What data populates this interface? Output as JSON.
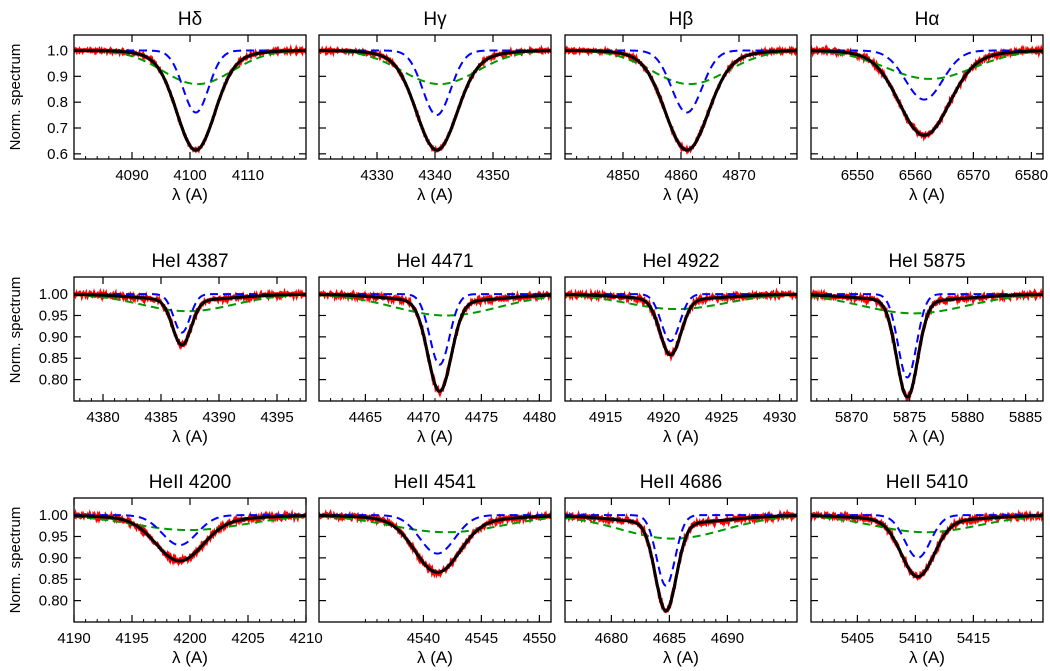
{
  "figure": {
    "ylabel": "Norm. spectrum",
    "xlabel": "λ (A)",
    "legend": "none",
    "grid": false
  },
  "colors": {
    "observed": "#ff0000",
    "model_total": "#000000",
    "component_1": "#0000ff",
    "component_2": "#009900"
  },
  "chart_data": [
    {
      "type": "line",
      "title": "Hδ",
      "xlim": [
        4080,
        4120
      ],
      "ylim": [
        0.58,
        1.06
      ],
      "xticks": [
        4090,
        4100,
        4110
      ],
      "yticks": [
        0.6,
        0.7,
        0.8,
        0.9,
        1.0
      ],
      "ytick_labels": [
        "0.6",
        "0.7",
        "0.8",
        "0.9",
        "1.0"
      ],
      "center": 4101.0,
      "depth_total": 0.34,
      "width_total": 3.2,
      "depth_c1": 0.24,
      "width_c1": 2.2,
      "depth_c2": 0.13,
      "width_c2": 6.0,
      "c2_offset": 0.3,
      "noise": 0.004
    },
    {
      "type": "line",
      "title": "Hγ",
      "xlim": [
        4320,
        4360
      ],
      "ylim": [
        0.58,
        1.06
      ],
      "xticks": [
        4330,
        4340,
        4350
      ],
      "yticks": [
        0.6,
        0.7,
        0.8,
        0.9,
        1.0
      ],
      "ytick_labels": [
        "0.6",
        "0.7",
        "0.8",
        "0.9",
        "1.0"
      ],
      "center": 4340.3,
      "depth_total": 0.34,
      "width_total": 3.4,
      "depth_c1": 0.25,
      "width_c1": 2.4,
      "depth_c2": 0.13,
      "width_c2": 6.5,
      "c2_offset": 0.5,
      "noise": 0.004
    },
    {
      "type": "line",
      "title": "Hβ",
      "xlim": [
        4840,
        4880
      ],
      "ylim": [
        0.58,
        1.06
      ],
      "xticks": [
        4850,
        4860,
        4870
      ],
      "yticks": [
        0.6,
        0.7,
        0.8,
        0.9,
        1.0
      ],
      "ytick_labels": [
        "0.6",
        "0.7",
        "0.8",
        "0.9",
        "1.0"
      ],
      "center": 4861.0,
      "depth_total": 0.34,
      "width_total": 3.6,
      "depth_c1": 0.24,
      "width_c1": 2.6,
      "depth_c2": 0.13,
      "width_c2": 6.5,
      "c2_offset": 0.5,
      "noise": 0.004
    },
    {
      "type": "line",
      "title": "Hα",
      "xlim": [
        6542,
        6582
      ],
      "ylim": [
        0.58,
        1.06
      ],
      "xticks": [
        6550,
        6560,
        6570,
        6580
      ],
      "yticks": [
        0.6,
        0.7,
        0.8,
        0.9,
        1.0
      ],
      "ytick_labels": [
        "0.6",
        "0.7",
        "0.8",
        "0.9",
        "1.0"
      ],
      "center": 6561.5,
      "depth_total": 0.29,
      "width_total": 4.2,
      "depth_c1": 0.19,
      "width_c1": 3.2,
      "depth_c2": 0.11,
      "width_c2": 7.5,
      "c2_offset": 1.0,
      "noise": 0.006
    },
    {
      "type": "line",
      "title": "HeI 4387",
      "xlim": [
        4377.5,
        4397.5
      ],
      "ylim": [
        0.75,
        1.04
      ],
      "xticks": [
        4380,
        4385,
        4390,
        4395
      ],
      "yticks": [
        0.8,
        0.85,
        0.9,
        0.95,
        1.0
      ],
      "ytick_labels": [
        "0.80",
        "0.85",
        "0.90",
        "0.95",
        "1.00"
      ],
      "center": 4386.8,
      "depth_total": 0.105,
      "width_total": 0.8,
      "depth_c1": 0.09,
      "width_c1": 0.7,
      "depth_c2": 0.04,
      "width_c2": 4.0,
      "c2_offset": 0.5,
      "noise": 0.004
    },
    {
      "type": "line",
      "title": "HeI 4471",
      "xlim": [
        4461,
        4481
      ],
      "ylim": [
        0.75,
        1.04
      ],
      "xticks": [
        4465,
        4470,
        4475,
        4480
      ],
      "yticks": [
        0.8,
        0.85,
        0.9,
        0.95,
        1.0
      ],
      "ytick_labels": [
        "0.80",
        "0.85",
        "0.90",
        "0.95",
        "1.00"
      ],
      "center": 4471.4,
      "depth_total": 0.21,
      "width_total": 1.0,
      "depth_c1": 0.165,
      "width_c1": 0.85,
      "depth_c2": 0.05,
      "width_c2": 4.5,
      "c2_offset": 0.6,
      "noise": 0.004
    },
    {
      "type": "line",
      "title": "HeI 4922",
      "xlim": [
        4911.5,
        4931.5
      ],
      "ylim": [
        0.75,
        1.04
      ],
      "xticks": [
        4915,
        4920,
        4925,
        4930
      ],
      "yticks": [
        0.8,
        0.85,
        0.9,
        0.95,
        1.0
      ],
      "ytick_labels": [
        "0.80",
        "0.85",
        "0.90",
        "0.95",
        "1.00"
      ],
      "center": 4920.6,
      "depth_total": 0.13,
      "width_total": 0.9,
      "depth_c1": 0.11,
      "width_c1": 0.8,
      "depth_c2": 0.035,
      "width_c2": 4.2,
      "c2_offset": 0.5,
      "noise": 0.004
    },
    {
      "type": "line",
      "title": "HeI 5875",
      "xlim": [
        5866.5,
        5886.5
      ],
      "ylim": [
        0.75,
        1.04
      ],
      "xticks": [
        5870,
        5875,
        5880,
        5885
      ],
      "yticks": [
        0.8,
        0.85,
        0.9,
        0.95,
        1.0
      ],
      "ytick_labels": [
        "0.80",
        "0.85",
        "0.90",
        "0.95",
        "1.00"
      ],
      "center": 5874.8,
      "depth_total": 0.225,
      "width_total": 0.9,
      "depth_c1": 0.195,
      "width_c1": 0.8,
      "depth_c2": 0.045,
      "width_c2": 4.5,
      "c2_offset": 0.6,
      "noise": 0.005
    },
    {
      "type": "line",
      "title": "HeII 4200",
      "xlim": [
        4190,
        4210
      ],
      "ylim": [
        0.75,
        1.04
      ],
      "xticks": [
        4190,
        4195,
        4200,
        4205,
        4210
      ],
      "yticks": [
        0.8,
        0.85,
        0.9,
        0.95,
        1.0
      ],
      "ytick_labels": [
        "0.80",
        "0.85",
        "0.90",
        "0.95",
        "1.00"
      ],
      "center": 4199.1,
      "depth_total": 0.095,
      "width_total": 2.0,
      "depth_c1": 0.07,
      "width_c1": 1.5,
      "depth_c2": 0.035,
      "width_c2": 4.8,
      "c2_offset": 0.8,
      "noise": 0.004
    },
    {
      "type": "line",
      "title": "HeII 4541",
      "xlim": [
        4531,
        4551
      ],
      "ylim": [
        0.75,
        1.04
      ],
      "xticks": [
        4540,
        4545,
        4550
      ],
      "yticks": [
        0.8,
        0.85,
        0.9,
        0.95,
        1.0
      ],
      "ytick_labels": [
        "0.80",
        "0.85",
        "0.90",
        "0.95",
        "1.00"
      ],
      "center": 4541.2,
      "depth_total": 0.12,
      "width_total": 1.9,
      "depth_c1": 0.09,
      "width_c1": 1.5,
      "depth_c2": 0.04,
      "width_c2": 4.8,
      "c2_offset": 0.8,
      "noise": 0.004
    },
    {
      "type": "line",
      "title": "HeII 4686",
      "xlim": [
        4676,
        4696
      ],
      "ylim": [
        0.75,
        1.04
      ],
      "xticks": [
        4680,
        4685,
        4690
      ],
      "yticks": [
        0.8,
        0.85,
        0.9,
        0.95,
        1.0
      ],
      "ytick_labels": [
        "0.80",
        "0.85",
        "0.90",
        "0.95",
        "1.00"
      ],
      "center": 4684.7,
      "depth_total": 0.205,
      "width_total": 0.9,
      "depth_c1": 0.165,
      "width_c1": 0.8,
      "depth_c2": 0.055,
      "width_c2": 4.5,
      "c2_offset": 0.6,
      "noise": 0.005
    },
    {
      "type": "line",
      "title": "HeII 5410",
      "xlim": [
        5401,
        5421
      ],
      "ylim": [
        0.75,
        1.04
      ],
      "xticks": [
        5405,
        5410,
        5415
      ],
      "yticks": [
        0.8,
        0.85,
        0.9,
        0.95,
        1.0
      ],
      "ytick_labels": [
        "0.80",
        "0.85",
        "0.90",
        "0.95",
        "1.00"
      ],
      "center": 5410.2,
      "depth_total": 0.13,
      "width_total": 1.4,
      "depth_c1": 0.1,
      "width_c1": 1.1,
      "depth_c2": 0.04,
      "width_c2": 4.5,
      "c2_offset": 0.7,
      "noise": 0.004
    }
  ]
}
